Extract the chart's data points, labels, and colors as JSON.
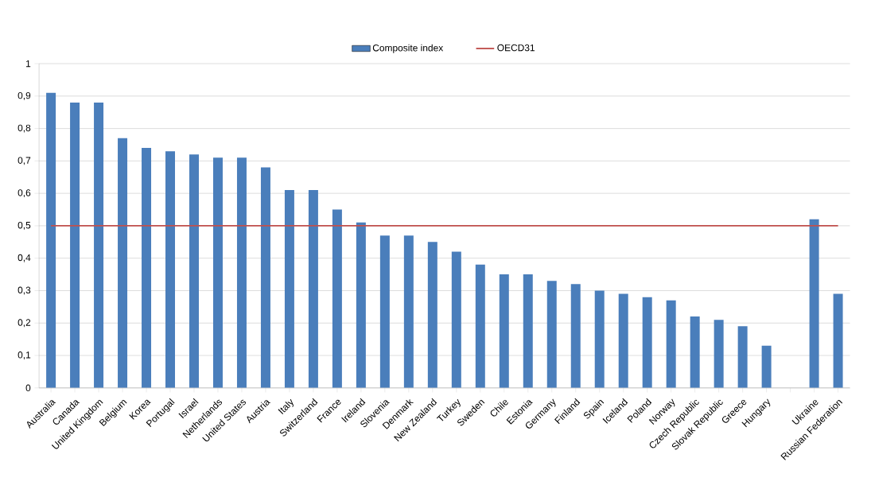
{
  "chart_data": {
    "type": "bar",
    "categories": [
      "Australia",
      "Canada",
      "United Kingdom",
      "Belgium",
      "Korea",
      "Portugal",
      "Israel",
      "Netherlands",
      "United States",
      "Austria",
      "Italy",
      "Switzerland",
      "France",
      "Ireland",
      "Slovenia",
      "Denmark",
      "New Zealand",
      "Turkey",
      "Sweden",
      "Chile",
      "Estonia",
      "Germany",
      "Finland",
      "Spain",
      "Iceland",
      "Poland",
      "Norway",
      "Czech Republic",
      "Slovak Republic",
      "Greece",
      "Hungary",
      null,
      "Ukraine",
      "Russian Federation"
    ],
    "series": [
      {
        "name": "Composite index",
        "color": "#4a7ebb",
        "values": [
          0.91,
          0.88,
          0.88,
          0.77,
          0.74,
          0.73,
          0.72,
          0.71,
          0.71,
          0.68,
          0.61,
          0.61,
          0.55,
          0.51,
          0.47,
          0.47,
          0.45,
          0.42,
          0.38,
          0.35,
          0.35,
          0.33,
          0.32,
          0.3,
          0.29,
          0.28,
          0.27,
          0.22,
          0.21,
          0.19,
          0.13,
          null,
          0.52,
          0.29
        ]
      },
      {
        "name": "OECD31",
        "type": "line",
        "color": "#c0504d",
        "values": [
          0.5,
          0.5,
          0.5,
          0.5,
          0.5,
          0.5,
          0.5,
          0.5,
          0.5,
          0.5,
          0.5,
          0.5,
          0.5,
          0.5,
          0.5,
          0.5,
          0.5,
          0.5,
          0.5,
          0.5,
          0.5,
          0.5,
          0.5,
          0.5,
          0.5,
          0.5,
          0.5,
          0.5,
          0.5,
          0.5,
          0.5,
          0.5,
          0.5,
          0.5
        ]
      }
    ],
    "ylim": [
      0,
      1
    ],
    "yticks": [
      0,
      {
        "value": 0.1,
        "label": "0,1"
      },
      {
        "value": 0.2,
        "label": "0,2"
      },
      {
        "value": 0.3,
        "label": "0,3"
      },
      {
        "value": 0.4,
        "label": "0,4"
      },
      {
        "value": 0.5,
        "label": "0,5"
      },
      {
        "value": 0.6,
        "label": "0,6"
      },
      {
        "value": 0.7,
        "label": "0,7"
      },
      {
        "value": 0.8,
        "label": "0,8"
      },
      {
        "value": 0.9,
        "label": "0,9"
      },
      1
    ],
    "grid": "y",
    "legend": "top"
  }
}
